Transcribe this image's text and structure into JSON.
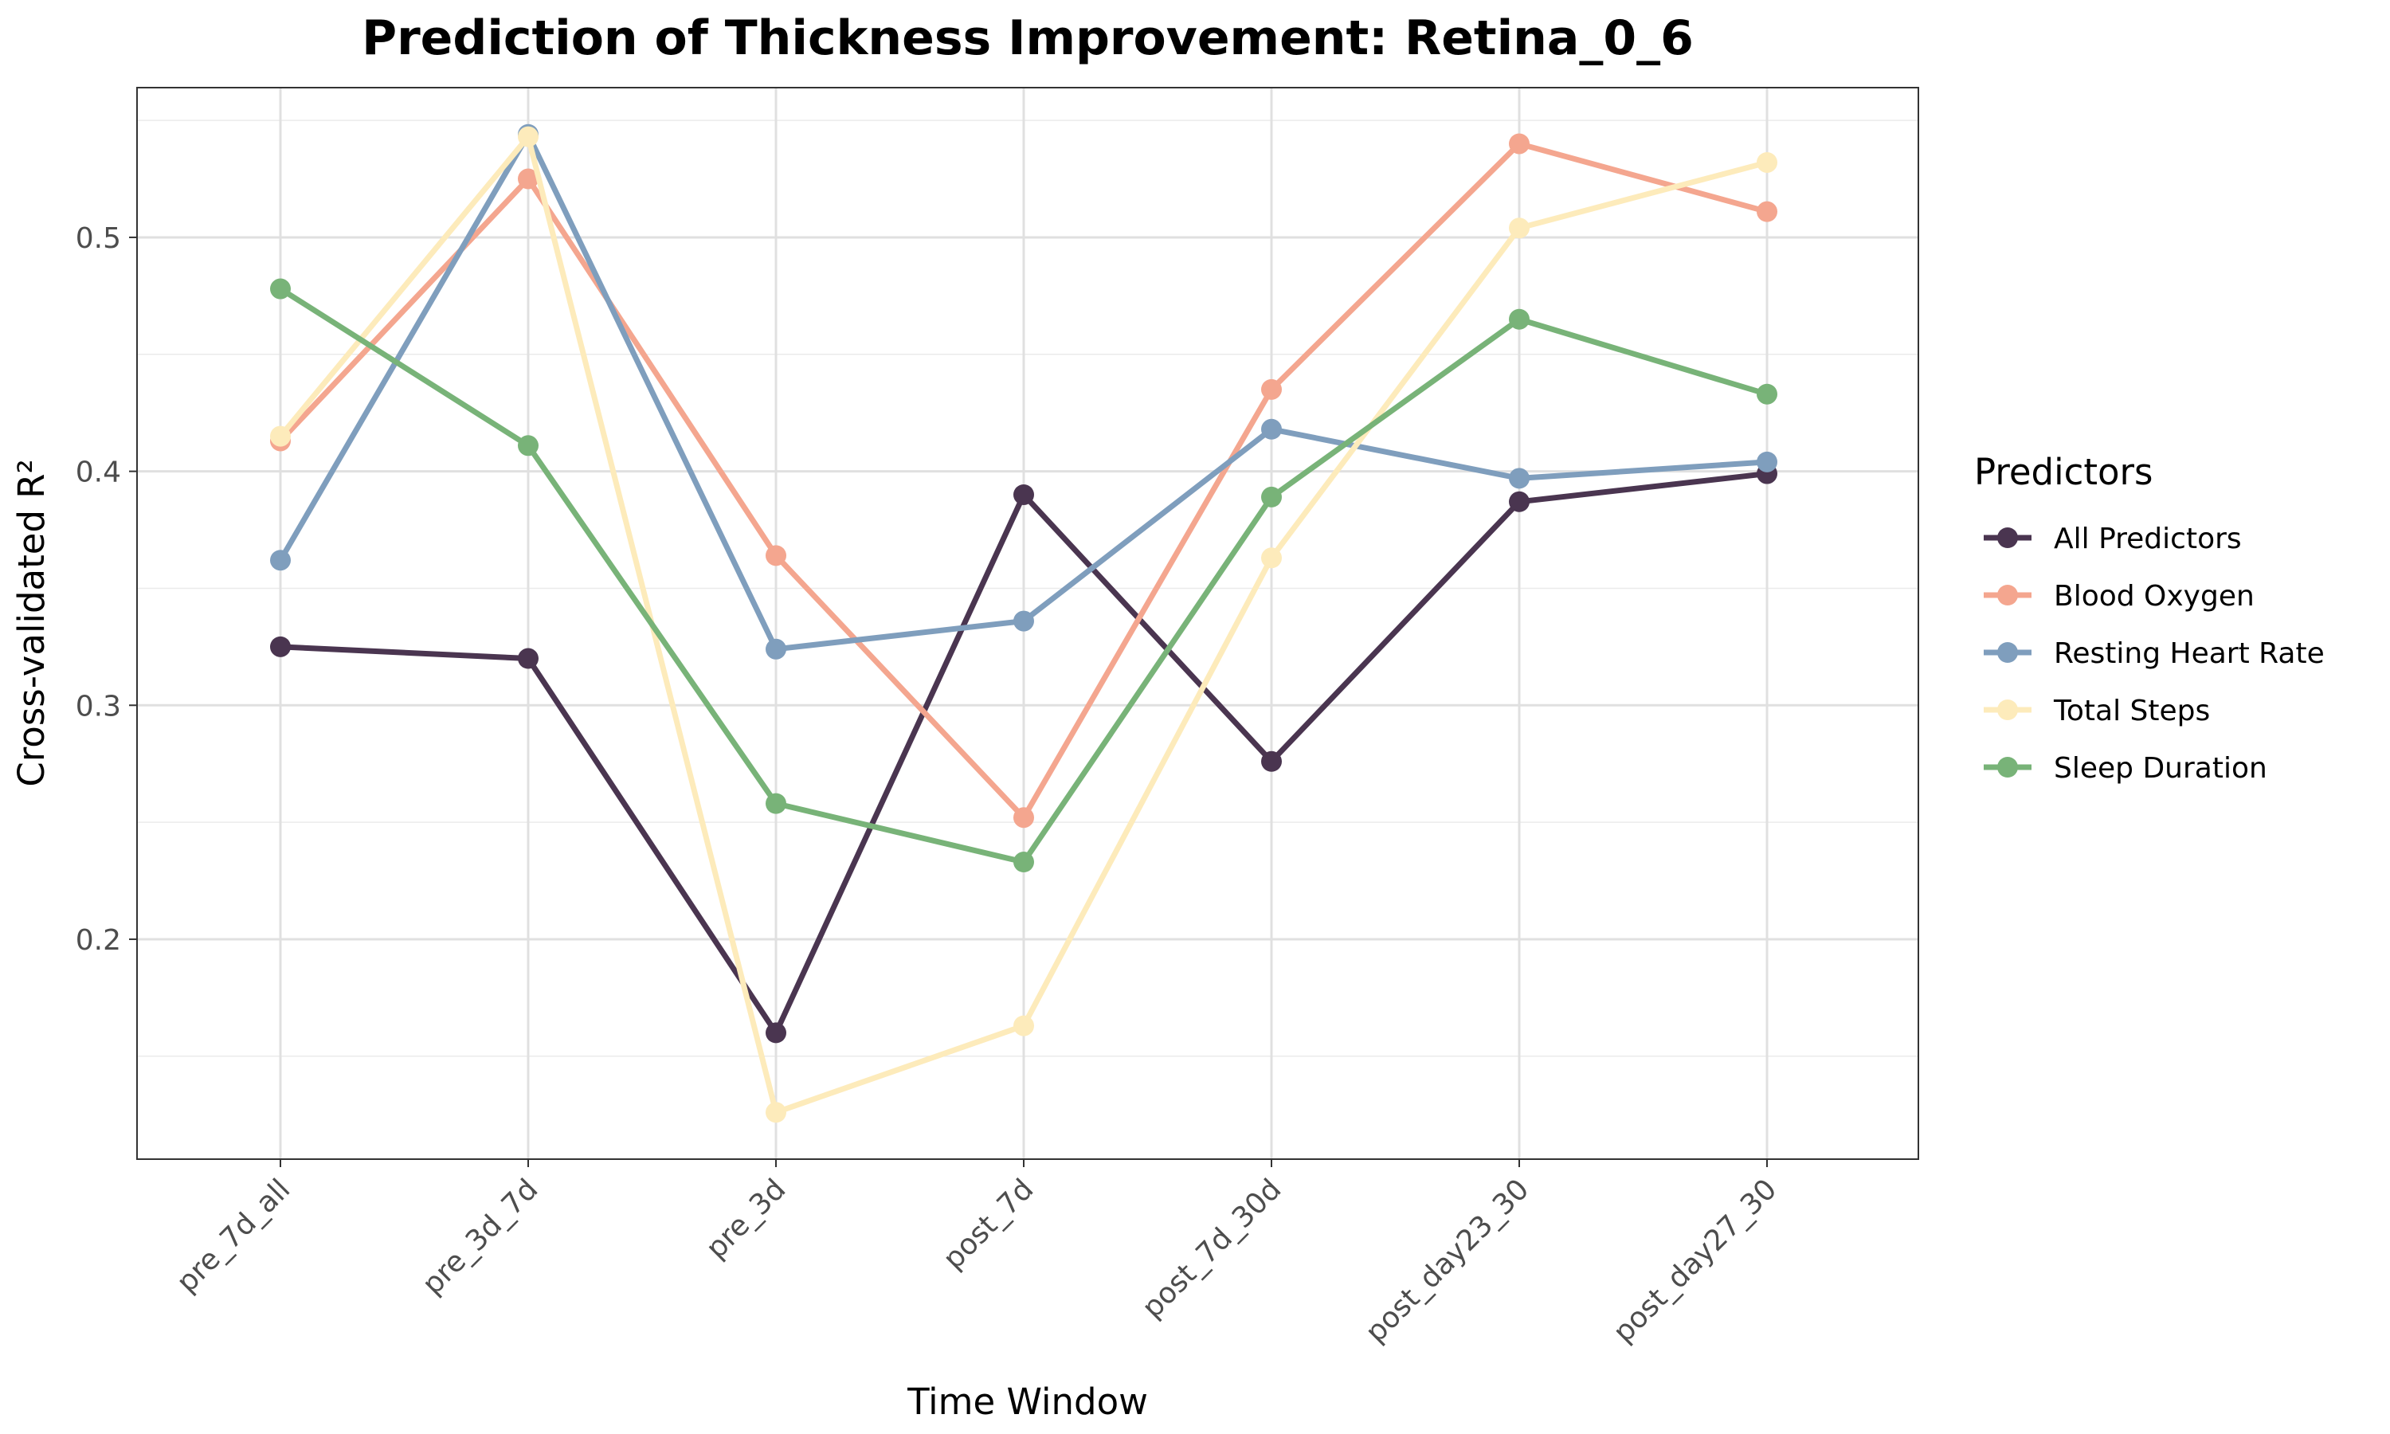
{
  "chart_data": {
    "type": "line",
    "title": "Prediction of Thickness Improvement: Retina_0_6",
    "xlabel": "Time Window",
    "ylabel": "Cross-validated R²",
    "categories": [
      "pre_7d_all",
      "pre_3d_7d",
      "pre_3d",
      "post_7d",
      "post_7d_30d",
      "post_day23_30",
      "post_day27_30"
    ],
    "ylim": [
      0.106,
      0.564
    ],
    "yticks": [
      0.2,
      0.3,
      0.4,
      0.5
    ],
    "ytick_labels": [
      "0.2",
      "0.3",
      "0.4",
      "0.5"
    ],
    "grid": true,
    "legend": {
      "title": "Predictors",
      "placement": "right"
    },
    "series": [
      {
        "name": "All Predictors",
        "color": "#4a3550",
        "values": [
          0.325,
          0.32,
          0.16,
          0.39,
          0.276,
          0.387,
          0.399
        ]
      },
      {
        "name": "Blood Oxygen",
        "color": "#f4a68f",
        "values": [
          0.413,
          0.525,
          0.364,
          0.252,
          0.435,
          0.54,
          0.511
        ]
      },
      {
        "name": "Resting Heart Rate",
        "color": "#7f9ebd",
        "values": [
          0.362,
          0.544,
          0.324,
          0.336,
          0.418,
          0.397,
          0.404
        ]
      },
      {
        "name": "Total Steps",
        "color": "#fdebbb",
        "values": [
          0.415,
          0.543,
          0.126,
          0.163,
          0.363,
          0.504,
          0.532
        ]
      },
      {
        "name": "Sleep Duration",
        "color": "#78b378",
        "values": [
          0.478,
          0.411,
          0.258,
          0.233,
          0.389,
          0.465,
          0.433
        ]
      }
    ]
  }
}
